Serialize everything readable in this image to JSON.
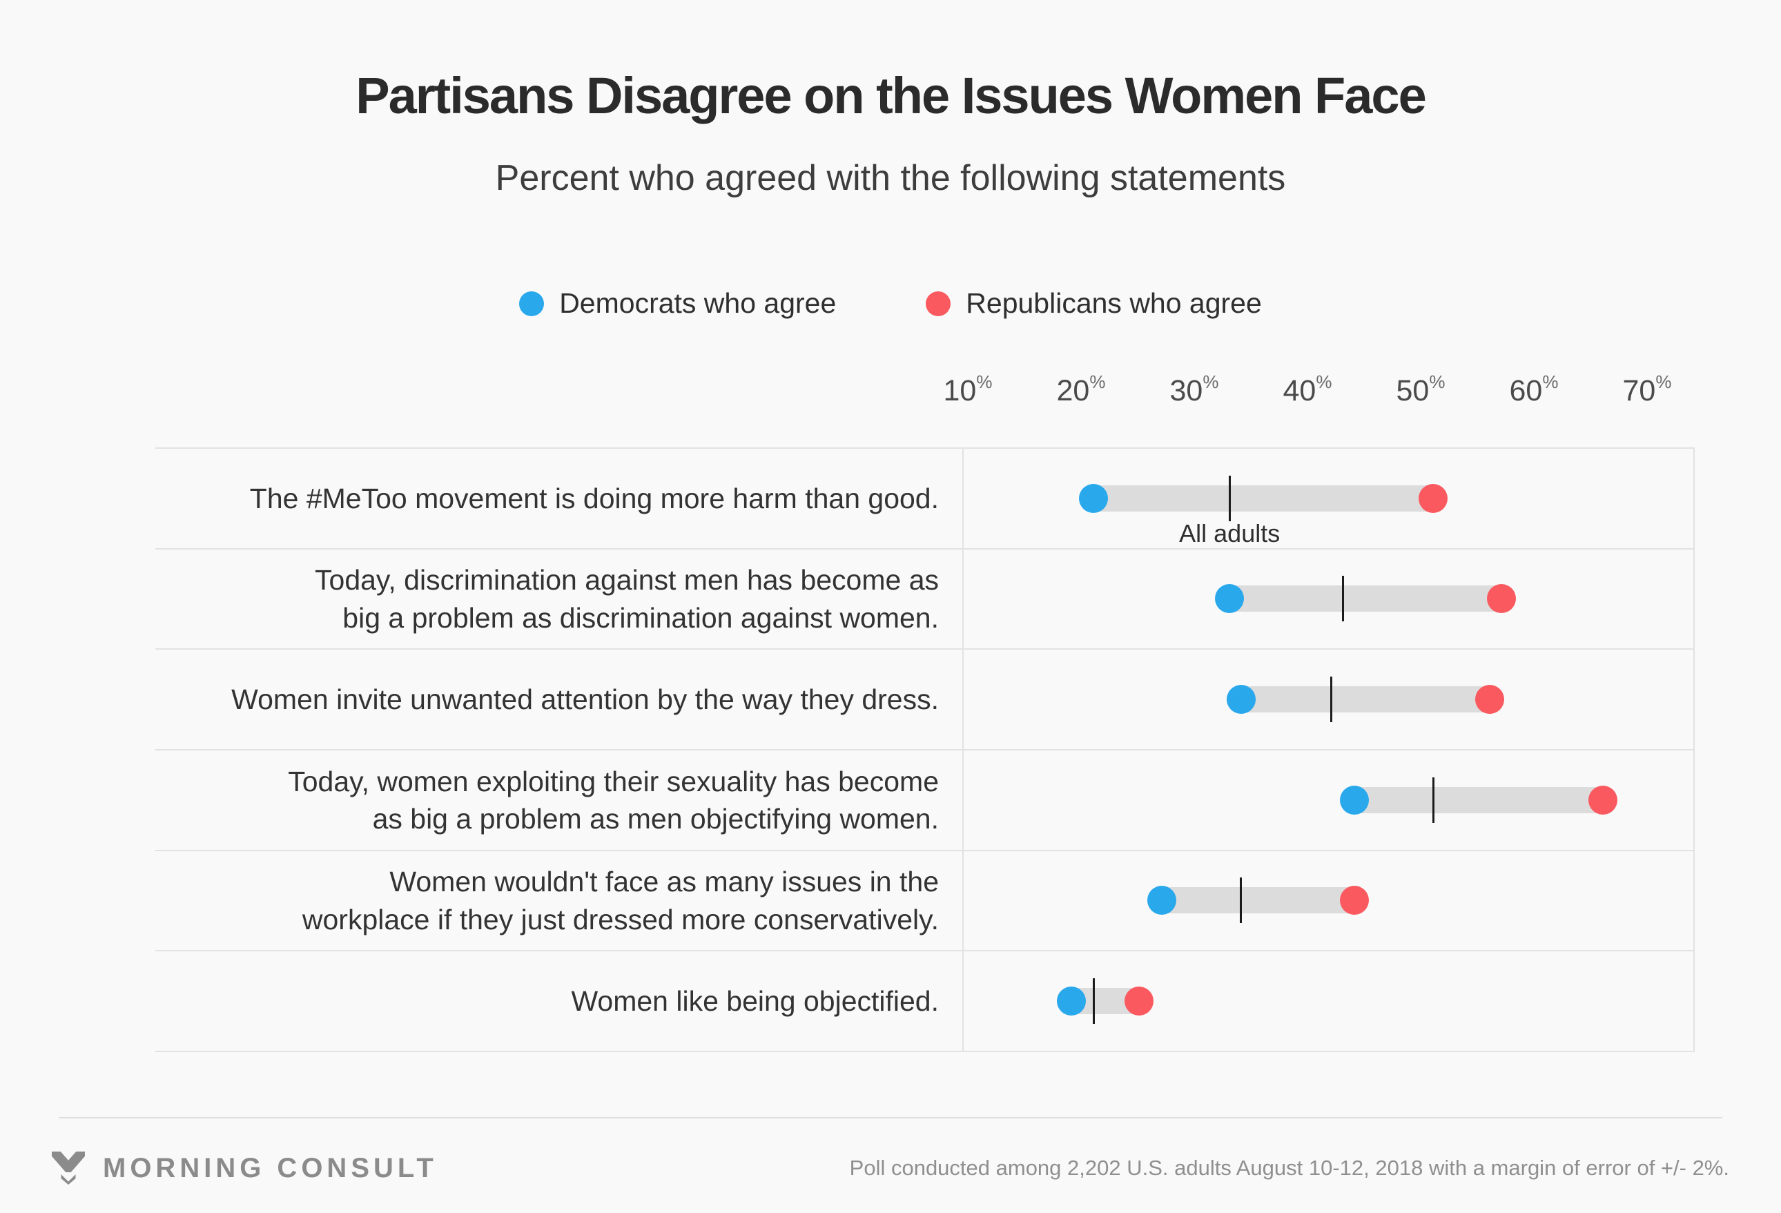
{
  "header": {
    "title": "Partisans Disagree on the Issues Women Face",
    "subtitle": "Percent who agreed with the following statements"
  },
  "chart_data": {
    "type": "dumbbell",
    "unit": "percent",
    "x_axis": {
      "min": 10,
      "max": 70,
      "ticks": [
        10,
        20,
        30,
        40,
        50,
        60,
        70
      ],
      "tick_suffix": "%"
    },
    "series": [
      {
        "id": "democrats",
        "name": "Democrats who agree",
        "color": "#29a8ec"
      },
      {
        "id": "republicans",
        "name": "Republicans who agree",
        "color": "#fa5a5f"
      }
    ],
    "connector_color": "#dcdcdc",
    "separator_color": "#e2e2e2",
    "all_adults_marker_color": "#1c1c1c",
    "all_adults_label": "All adults",
    "rows": [
      {
        "statement": "The #MeToo movement is doing more harm than good.",
        "democrats": 21,
        "republicans": 51,
        "all_adults": 33,
        "show_all_adults_label": true
      },
      {
        "statement": "Today, discrimination against men has become as\nbig a problem as discrimination against women.",
        "democrats": 33,
        "republicans": 57,
        "all_adults": 43,
        "show_all_adults_label": false
      },
      {
        "statement": "Women invite unwanted attention by the way they dress.",
        "democrats": 34,
        "republicans": 56,
        "all_adults": 42,
        "show_all_adults_label": false
      },
      {
        "statement": "Today, women exploiting their sexuality has become\nas big a problem as men objectifying women.",
        "democrats": 44,
        "republicans": 66,
        "all_adults": 51,
        "show_all_adults_label": false
      },
      {
        "statement": "Women wouldn't face as many issues in the\nworkplace if they just dressed more conservatively.",
        "democrats": 27,
        "republicans": 44,
        "all_adults": 34,
        "show_all_adults_label": false
      },
      {
        "statement": "Women like being objectified.",
        "democrats": 19,
        "republicans": 25,
        "all_adults": 21,
        "show_all_adults_label": false
      }
    ]
  },
  "footer": {
    "brand": "MORNING CONSULT",
    "note": "Poll conducted among 2,202 U.S. adults August 10-12, 2018 with a margin of error of +/- 2%."
  }
}
